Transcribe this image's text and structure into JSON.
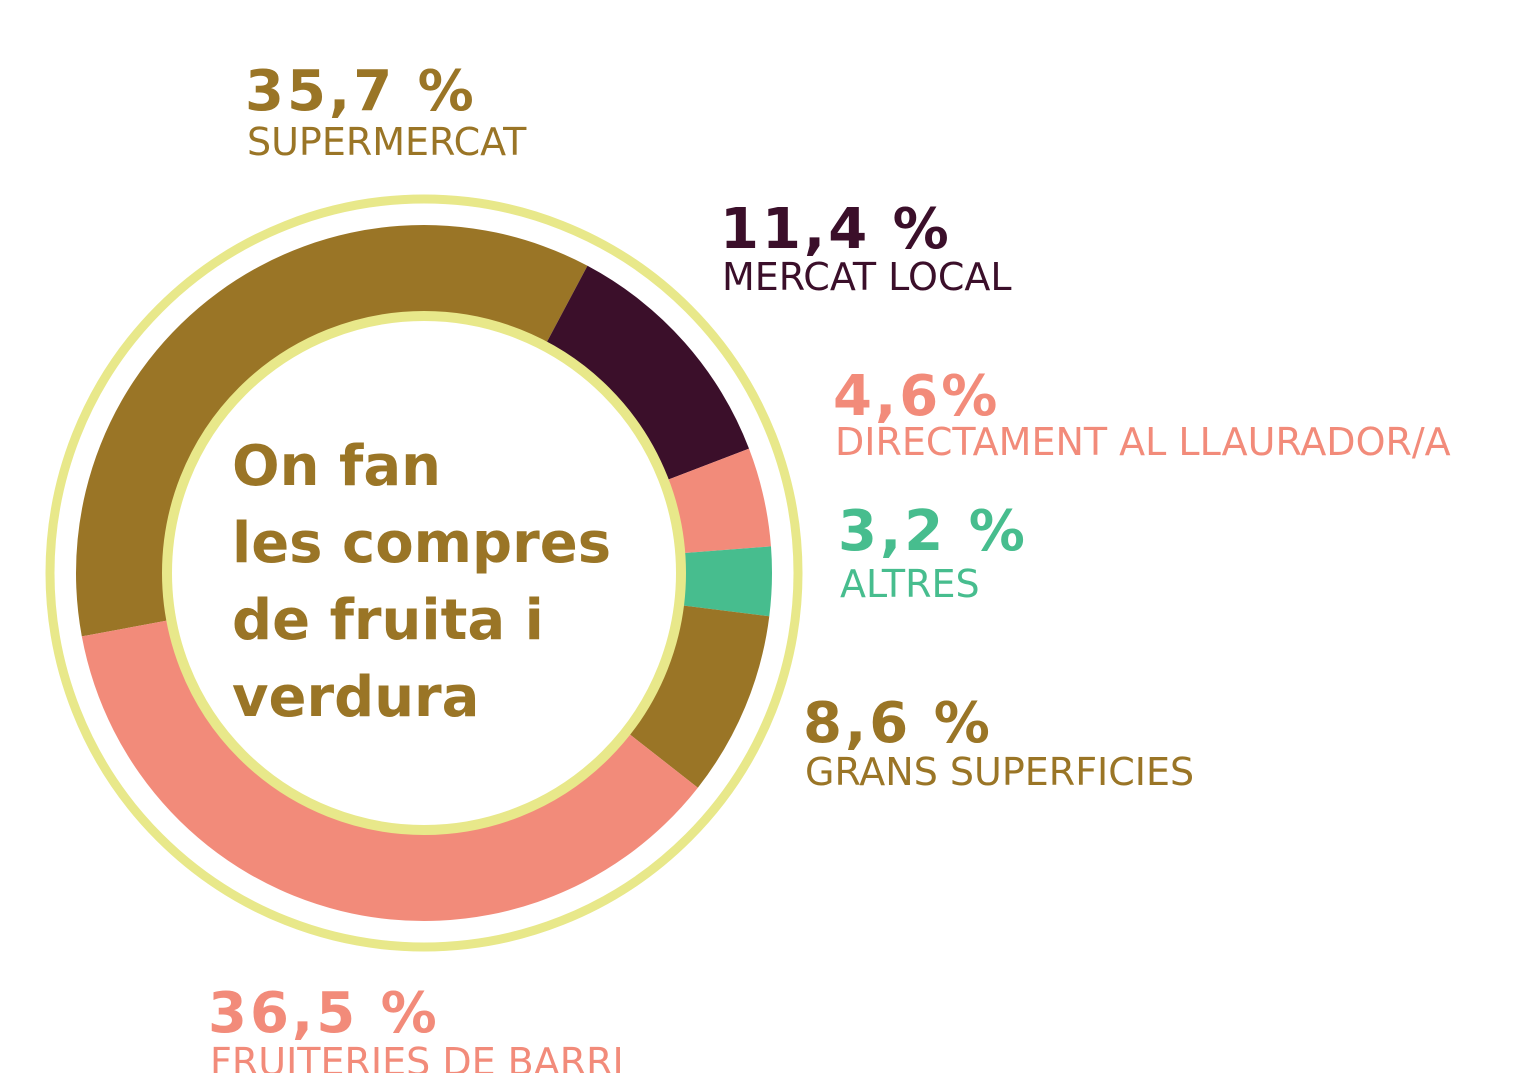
{
  "chart_data": {
    "type": "pie",
    "donut": true,
    "title": [
      "On fan",
      "les compres",
      "de fruita i",
      "verdura"
    ],
    "categories": [
      "SUPERMERCAT",
      "MERCAT LOCAL",
      "DIRECTAMENT AL LLAURADOR/A",
      "ALTRES",
      "GRANS SUPERFICIES",
      "FRUITERIES DE BARRI"
    ],
    "values": [
      35.7,
      11.4,
      4.6,
      3.2,
      8.6,
      36.5
    ],
    "value_labels": [
      "35,7 %",
      "11,4 %",
      "4,6%",
      "3,2 %",
      "8,6 %",
      "36,5 %"
    ],
    "colors": [
      "#9a7526",
      "#3b0f2a",
      "#f28b7a",
      "#47bd8e",
      "#9a7526",
      "#f28b7a"
    ]
  }
}
